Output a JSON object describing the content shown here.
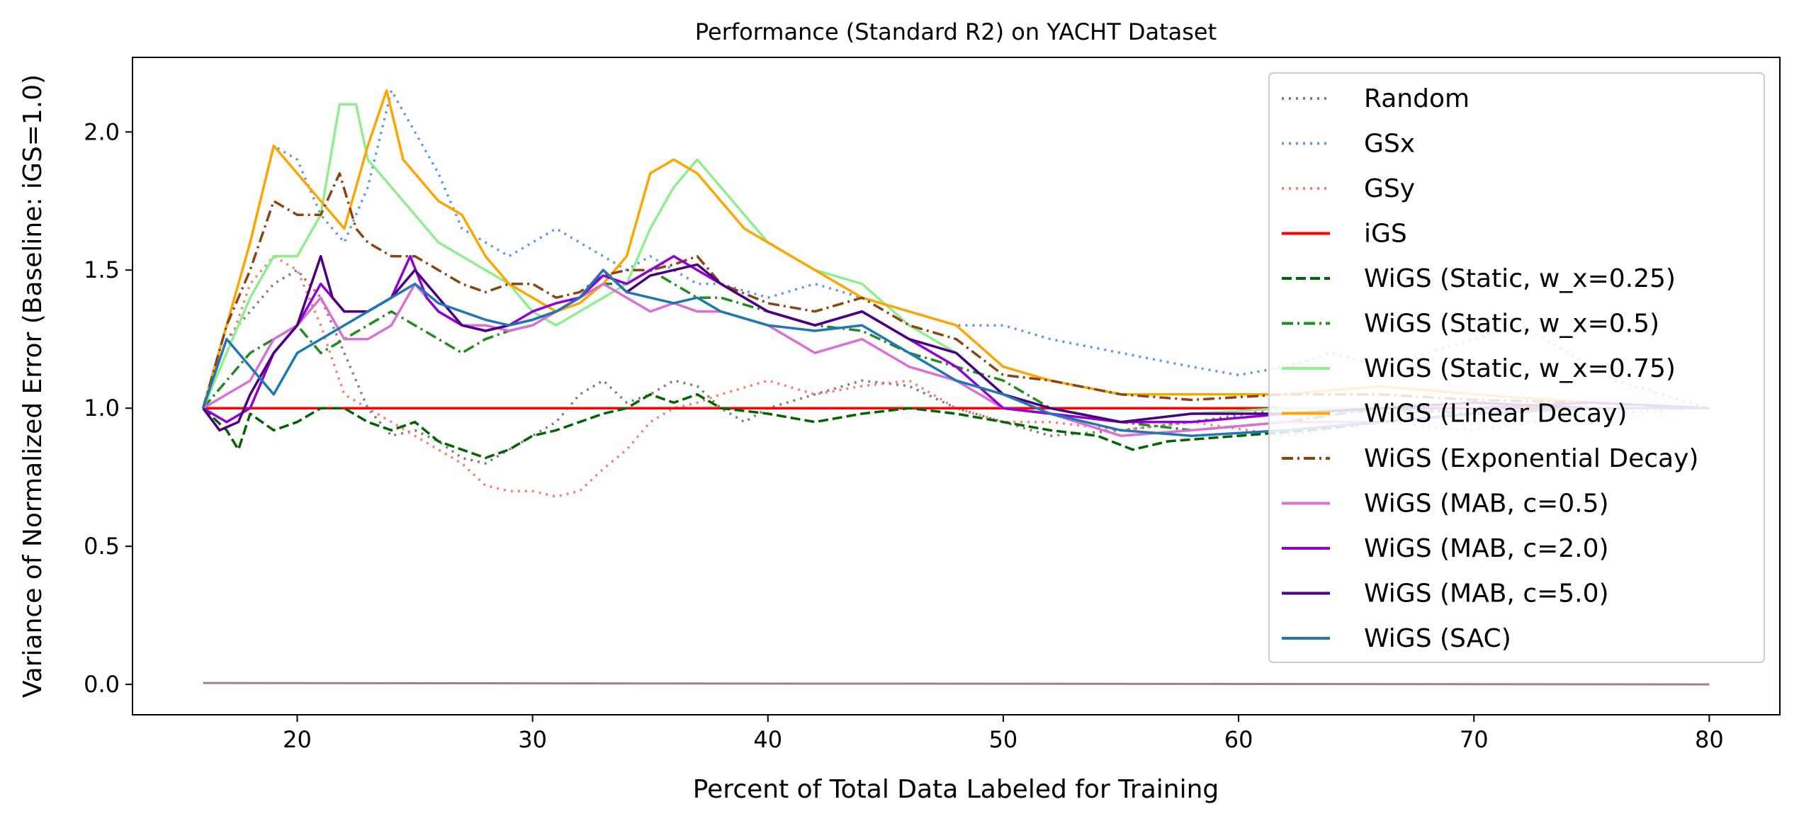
{
  "chart_data": {
    "type": "line",
    "title": "Performance (Standard R2) on YACHT Dataset",
    "xlabel": "Percent of Total Data Labeled for Training",
    "ylabel": "Variance of Normalized Error (Baseline: iGS=1.0)",
    "xlim": [
      13,
      83
    ],
    "ylim": [
      -0.11,
      2.27
    ],
    "xticks": [
      20,
      30,
      40,
      50,
      60,
      70,
      80
    ],
    "yticks": [
      0.0,
      0.5,
      1.0,
      1.5,
      2.0
    ],
    "ytick_labels": [
      "0.0",
      "0.5",
      "1.0",
      "1.5",
      "2.0"
    ],
    "grid": false,
    "legend_position": "top-right",
    "series": [
      {
        "name": "Random",
        "color": "#808080",
        "dash": "dotted",
        "x": [
          16,
          17,
          18,
          19,
          20,
          21,
          22,
          23,
          24,
          25,
          26,
          27,
          28,
          29,
          30,
          31,
          32,
          33,
          34,
          35,
          36,
          37,
          38,
          39,
          40,
          42,
          44,
          46,
          48,
          50,
          52,
          55,
          58,
          62,
          66,
          70,
          75,
          80
        ],
        "y": [
          1.0,
          1.25,
          1.35,
          1.45,
          1.5,
          1.4,
          1.2,
          1.0,
          0.9,
          0.92,
          0.88,
          0.82,
          0.8,
          0.85,
          0.9,
          0.95,
          1.05,
          1.1,
          1.02,
          1.05,
          1.1,
          1.08,
          1.0,
          0.95,
          1.0,
          1.05,
          1.1,
          1.08,
          1.0,
          0.95,
          0.9,
          0.92,
          0.95,
          1.0,
          0.98,
          1.0,
          1.02,
          1.0
        ]
      },
      {
        "name": "GSx",
        "color": "#6495ed",
        "dash": "dotted",
        "x": [
          16,
          17,
          18,
          19,
          20,
          21,
          22,
          23,
          24,
          25,
          26,
          27,
          28,
          29,
          30,
          31,
          32,
          33,
          34,
          35,
          36,
          37,
          38,
          40,
          42,
          44,
          46,
          48,
          50,
          52,
          55,
          58,
          60,
          62,
          64,
          66,
          68,
          70,
          72,
          74,
          76,
          78,
          80
        ],
        "y": [
          1.0,
          1.3,
          1.6,
          1.95,
          1.9,
          1.7,
          1.6,
          1.8,
          2.15,
          2.0,
          1.85,
          1.65,
          1.6,
          1.55,
          1.6,
          1.65,
          1.6,
          1.55,
          1.5,
          1.55,
          1.5,
          1.45,
          1.45,
          1.4,
          1.45,
          1.4,
          1.35,
          1.3,
          1.3,
          1.25,
          1.2,
          1.15,
          1.12,
          1.15,
          1.2,
          1.15,
          1.2,
          1.25,
          1.3,
          1.2,
          1.1,
          1.05,
          1.0
        ]
      },
      {
        "name": "GSy",
        "color": "#fa8072",
        "dash": "dotted",
        "x": [
          16,
          17,
          18,
          19,
          20,
          21,
          22,
          23,
          24,
          25,
          26,
          27,
          28,
          29,
          30,
          31,
          32,
          33,
          34,
          35,
          36,
          37,
          38,
          40,
          42,
          44,
          46,
          48,
          50,
          52,
          55,
          58,
          62,
          66,
          70,
          75,
          80
        ],
        "y": [
          1.0,
          1.2,
          1.45,
          1.55,
          1.5,
          1.3,
          1.05,
          1.0,
          0.95,
          0.9,
          0.85,
          0.8,
          0.72,
          0.7,
          0.7,
          0.68,
          0.7,
          0.78,
          0.85,
          0.95,
          1.0,
          1.02,
          1.05,
          1.1,
          1.05,
          1.08,
          1.1,
          1.0,
          0.95,
          0.95,
          0.92,
          0.95,
          0.9,
          0.95,
          0.92,
          0.98,
          1.0
        ]
      },
      {
        "name": "iGS",
        "color": "#ff0000",
        "dash": "solid",
        "x": [
          16,
          80
        ],
        "y": [
          1.0,
          1.0
        ]
      },
      {
        "name": "WiGS (Static, w_x=0.25)",
        "color": "#006400",
        "dash": "dashed",
        "x": [
          16,
          17,
          17.5,
          18,
          19,
          20,
          21,
          22,
          23,
          24,
          25,
          26,
          27,
          28,
          29,
          30,
          31,
          32,
          33,
          34,
          35,
          36,
          37,
          38,
          40,
          42,
          44,
          46,
          48,
          50,
          52,
          54,
          55.5,
          57,
          60,
          63,
          66,
          70,
          75,
          80
        ],
        "y": [
          1.0,
          0.92,
          0.85,
          0.98,
          0.92,
          0.95,
          1.0,
          1.0,
          0.95,
          0.92,
          0.95,
          0.88,
          0.85,
          0.82,
          0.85,
          0.9,
          0.92,
          0.95,
          0.98,
          1.0,
          1.05,
          1.02,
          1.05,
          1.0,
          0.98,
          0.95,
          0.98,
          1.0,
          0.98,
          0.95,
          0.92,
          0.9,
          0.85,
          0.88,
          0.9,
          0.92,
          0.95,
          0.98,
          1.0,
          1.0
        ]
      },
      {
        "name": "WiGS (Static, w_x=0.5)",
        "color": "#228b22",
        "dash": "dashdot",
        "x": [
          16,
          17,
          18,
          19,
          20,
          21,
          22,
          23,
          24,
          25,
          26,
          27,
          28,
          29,
          30,
          31,
          32,
          33,
          34,
          35,
          36,
          37,
          38,
          40,
          42,
          44,
          46,
          48,
          50,
          52,
          55,
          58,
          62,
          66,
          70,
          75,
          80
        ],
        "y": [
          1.0,
          1.1,
          1.2,
          1.25,
          1.3,
          1.2,
          1.25,
          1.3,
          1.35,
          1.3,
          1.25,
          1.2,
          1.25,
          1.28,
          1.3,
          1.35,
          1.4,
          1.45,
          1.45,
          1.5,
          1.45,
          1.4,
          1.4,
          1.35,
          1.3,
          1.28,
          1.2,
          1.15,
          1.1,
          1.0,
          0.95,
          0.92,
          0.95,
          1.0,
          0.98,
          1.0,
          1.0
        ]
      },
      {
        "name": "WiGS (Static, w_x=0.75)",
        "color": "#90ee90",
        "dash": "solid",
        "x": [
          16,
          17,
          18,
          19,
          20,
          21,
          21.8,
          22.5,
          23,
          24,
          25,
          26,
          27,
          28,
          29,
          30,
          31,
          32,
          33,
          34,
          35,
          36,
          37,
          38,
          39,
          40,
          42,
          44,
          46,
          48,
          50,
          52,
          55,
          58,
          62,
          66,
          70,
          75,
          80
        ],
        "y": [
          1.0,
          1.2,
          1.4,
          1.55,
          1.55,
          1.7,
          2.1,
          2.1,
          1.9,
          1.8,
          1.7,
          1.6,
          1.55,
          1.5,
          1.45,
          1.35,
          1.3,
          1.35,
          1.4,
          1.45,
          1.65,
          1.8,
          1.9,
          1.8,
          1.7,
          1.6,
          1.5,
          1.45,
          1.3,
          1.2,
          1.05,
          1.0,
          0.95,
          0.98,
          1.0,
          1.0,
          1.02,
          1.0,
          1.0
        ]
      },
      {
        "name": "WiGS (Linear Decay)",
        "color": "#ffa500",
        "dash": "solid",
        "x": [
          16,
          17,
          18,
          19,
          20,
          21,
          22,
          23,
          23.8,
          24.5,
          25,
          26,
          27,
          28,
          29,
          30,
          31,
          32,
          33,
          34,
          35,
          36,
          37,
          38,
          39,
          40,
          42,
          44,
          46,
          48,
          50,
          52,
          55,
          58,
          62,
          66,
          70,
          75,
          80
        ],
        "y": [
          1.0,
          1.3,
          1.6,
          1.95,
          1.85,
          1.75,
          1.65,
          1.95,
          2.15,
          1.9,
          1.85,
          1.75,
          1.7,
          1.55,
          1.45,
          1.4,
          1.35,
          1.38,
          1.45,
          1.55,
          1.85,
          1.9,
          1.85,
          1.75,
          1.65,
          1.6,
          1.5,
          1.4,
          1.35,
          1.3,
          1.15,
          1.1,
          1.05,
          1.05,
          1.05,
          1.08,
          1.05,
          1.02,
          1.0
        ]
      },
      {
        "name": "WiGS (Exponential Decay)",
        "color": "#8b4513",
        "dash": "dashdot",
        "x": [
          16,
          17,
          18,
          19,
          20,
          21,
          21.8,
          22.5,
          23,
          24,
          25,
          26,
          27,
          28,
          29,
          30,
          31,
          32,
          33,
          34,
          35,
          36,
          37,
          38,
          40,
          42,
          44,
          46,
          48,
          50,
          52,
          55,
          58,
          62,
          66,
          70,
          75,
          80
        ],
        "y": [
          1.0,
          1.3,
          1.5,
          1.75,
          1.7,
          1.7,
          1.85,
          1.65,
          1.6,
          1.55,
          1.55,
          1.5,
          1.45,
          1.42,
          1.45,
          1.45,
          1.4,
          1.42,
          1.48,
          1.5,
          1.5,
          1.52,
          1.55,
          1.45,
          1.38,
          1.35,
          1.4,
          1.3,
          1.25,
          1.12,
          1.1,
          1.05,
          1.03,
          1.05,
          1.05,
          1.03,
          1.02,
          1.0
        ]
      },
      {
        "name": "WiGS (MAB, c=0.5)",
        "color": "#da70d6",
        "dash": "solid",
        "x": [
          16,
          17,
          18,
          19,
          20,
          21,
          22,
          23,
          24,
          25,
          26,
          27,
          28,
          29,
          30,
          31,
          32,
          33,
          34,
          35,
          36,
          37,
          38,
          40,
          42,
          44,
          46,
          48,
          50,
          52,
          55,
          58,
          62,
          66,
          70,
          75,
          80
        ],
        "y": [
          1.0,
          1.05,
          1.1,
          1.25,
          1.3,
          1.4,
          1.25,
          1.25,
          1.3,
          1.45,
          1.35,
          1.3,
          1.3,
          1.28,
          1.3,
          1.35,
          1.4,
          1.45,
          1.4,
          1.35,
          1.38,
          1.35,
          1.35,
          1.3,
          1.2,
          1.25,
          1.15,
          1.1,
          1.0,
          0.98,
          0.9,
          0.92,
          0.95,
          0.95,
          0.98,
          1.0,
          1.0
        ]
      },
      {
        "name": "WiGS (MAB, c=2.0)",
        "color": "#9400d3",
        "dash": "solid",
        "x": [
          16,
          17,
          18,
          19,
          20,
          21,
          22,
          23,
          24,
          24.8,
          25.5,
          26,
          27,
          28,
          29,
          30,
          31,
          32,
          33,
          34,
          35,
          36,
          37,
          38,
          40,
          42,
          44,
          46,
          48,
          50,
          52,
          55,
          58,
          62,
          66,
          70,
          75,
          80
        ],
        "y": [
          1.0,
          0.95,
          1.0,
          1.2,
          1.3,
          1.45,
          1.35,
          1.35,
          1.4,
          1.55,
          1.4,
          1.35,
          1.3,
          1.28,
          1.3,
          1.35,
          1.38,
          1.4,
          1.48,
          1.45,
          1.5,
          1.55,
          1.5,
          1.45,
          1.35,
          1.3,
          1.35,
          1.25,
          1.15,
          1.0,
          0.98,
          0.95,
          0.95,
          0.98,
          1.0,
          1.0,
          1.02,
          1.0
        ]
      },
      {
        "name": "WiGS (MAB, c=5.0)",
        "color": "#4b0082",
        "dash": "solid",
        "x": [
          16,
          16.7,
          17.5,
          18,
          19,
          20,
          21,
          21.5,
          22,
          23,
          24,
          25,
          26,
          27,
          28,
          29,
          30,
          31,
          32,
          33,
          34,
          35,
          36,
          37,
          38,
          40,
          42,
          44,
          46,
          48,
          50,
          52,
          55,
          58,
          62,
          66,
          70,
          75,
          80
        ],
        "y": [
          1.0,
          0.92,
          0.95,
          1.05,
          1.2,
          1.3,
          1.55,
          1.4,
          1.35,
          1.35,
          1.4,
          1.5,
          1.4,
          1.3,
          1.28,
          1.3,
          1.32,
          1.35,
          1.4,
          1.5,
          1.42,
          1.48,
          1.5,
          1.52,
          1.45,
          1.35,
          1.3,
          1.35,
          1.25,
          1.2,
          1.05,
          1.0,
          0.95,
          0.98,
          0.98,
          1.0,
          1.02,
          1.0,
          1.0
        ]
      },
      {
        "name": "WiGS (SAC)",
        "color": "#1f77b4",
        "dash": "solid",
        "x": [
          16,
          17,
          18,
          19,
          20,
          21,
          22,
          23,
          24,
          25,
          26,
          27,
          28,
          29,
          30,
          31,
          32,
          33,
          34,
          35,
          36,
          37,
          38,
          40,
          42,
          44,
          46,
          48,
          50,
          52,
          55,
          58,
          62,
          66,
          70,
          75,
          80
        ],
        "y": [
          1.0,
          1.25,
          1.15,
          1.05,
          1.2,
          1.25,
          1.3,
          1.35,
          1.4,
          1.45,
          1.38,
          1.35,
          1.32,
          1.3,
          1.32,
          1.35,
          1.4,
          1.5,
          1.42,
          1.4,
          1.38,
          1.4,
          1.35,
          1.3,
          1.28,
          1.3,
          1.2,
          1.1,
          1.05,
          0.98,
          0.92,
          0.9,
          0.92,
          0.95,
          0.98,
          1.0,
          1.0
        ]
      }
    ],
    "baseline_series": {
      "color": "#a08080",
      "x": [
        16,
        80
      ],
      "y": [
        0.005,
        0.0
      ]
    }
  }
}
